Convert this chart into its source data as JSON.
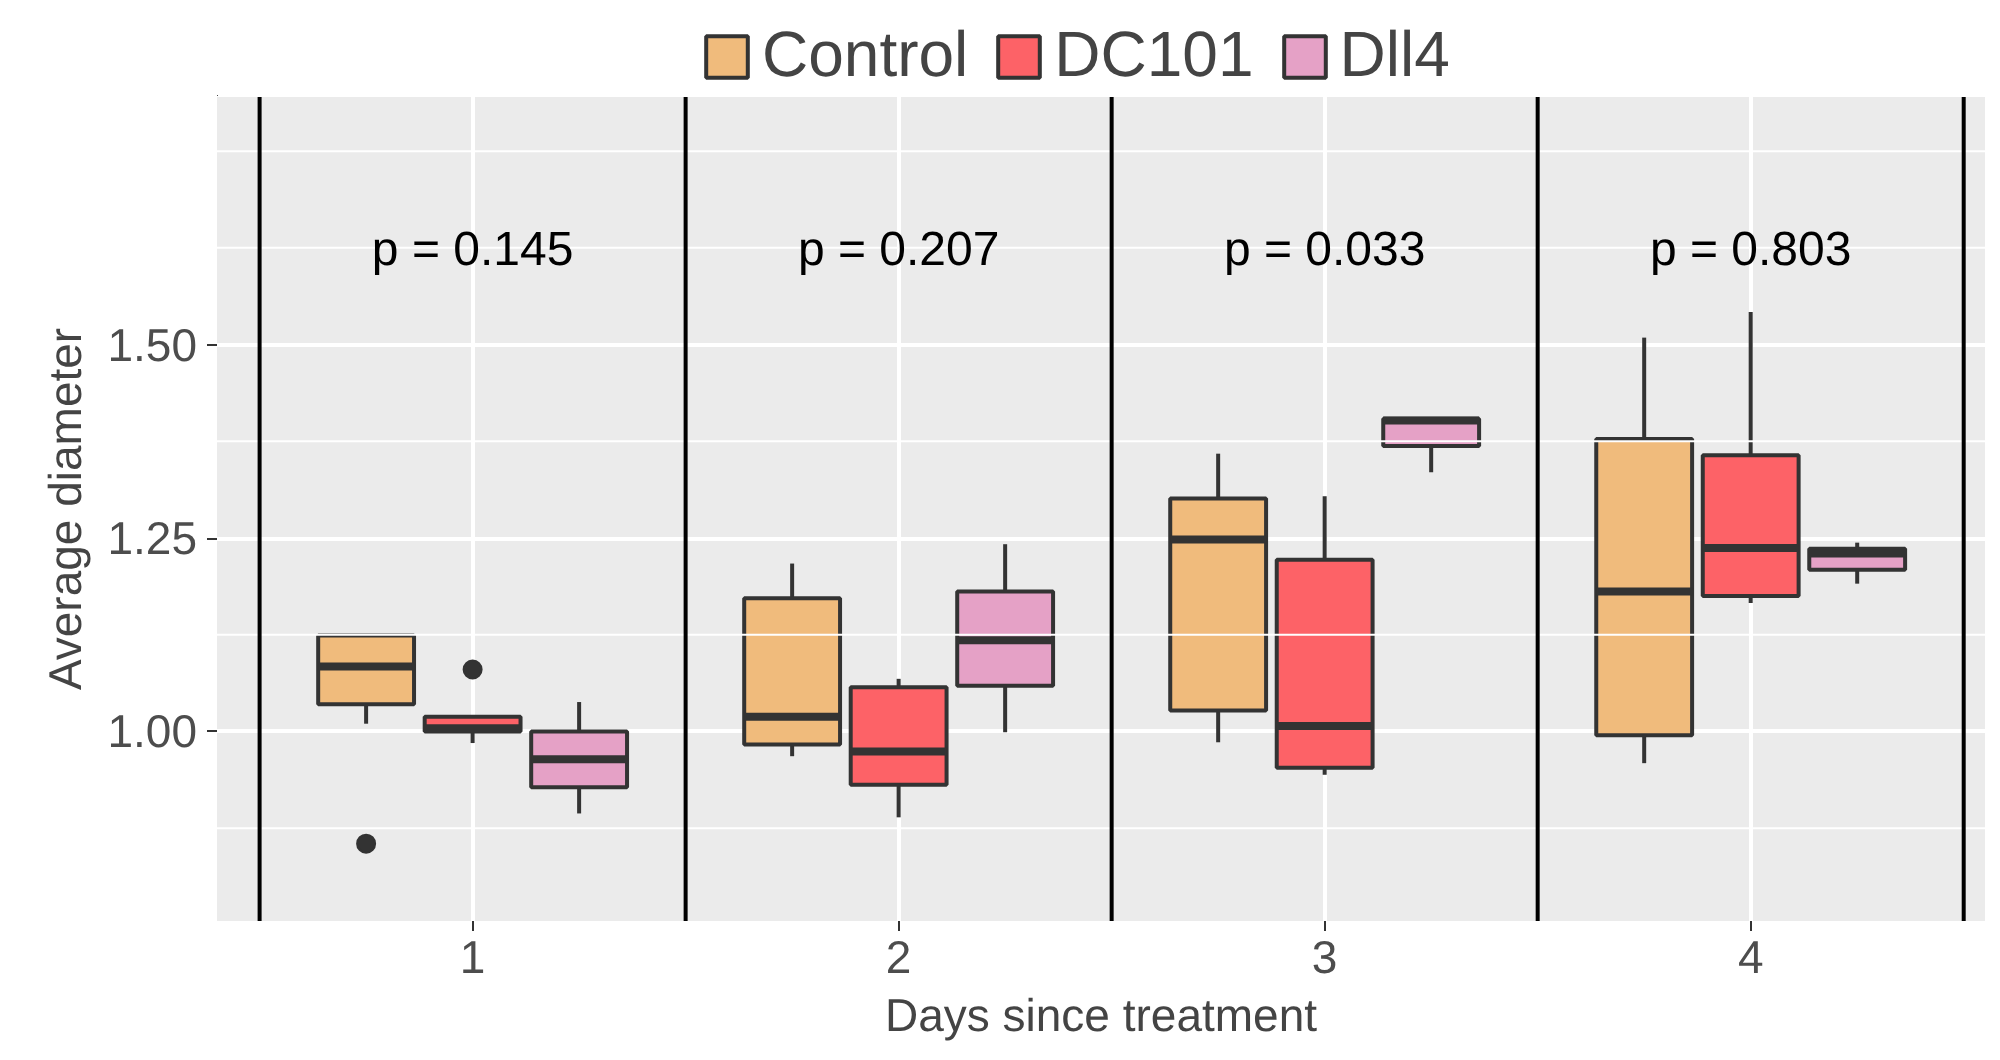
{
  "chart_data": {
    "type": "box",
    "xlabel": "Days since treatment",
    "ylabel": "Average diameter",
    "x": [
      1,
      2,
      3,
      4
    ],
    "xlim": [
      0.4,
      4.55
    ],
    "xticks": [
      1,
      2,
      3,
      4
    ],
    "ylim": [
      0.755,
      1.82
    ],
    "yticks": [
      {
        "value": 0.875,
        "label": null
      },
      {
        "value": 1.0,
        "label": "1.00"
      },
      {
        "value": 1.125,
        "label": null
      },
      {
        "value": 1.25,
        "label": "1.25"
      },
      {
        "value": 1.375,
        "label": null
      },
      {
        "value": 1.5,
        "label": "1.50"
      },
      {
        "value": 1.625,
        "label": null
      },
      {
        "value": 1.75,
        "label": null
      }
    ],
    "grid": true,
    "legend": "top",
    "series": [
      {
        "name": "Control",
        "color": "#f0bb7c",
        "boxes": [
          {
            "low": 1.01,
            "q1": 1.035,
            "median": 1.084,
            "q3": 1.124,
            "high": 1.125,
            "outliers": [
              0.855
            ]
          },
          {
            "low": 0.968,
            "q1": 0.983,
            "median": 1.019,
            "q3": 1.172,
            "high": 1.217
          },
          {
            "low": 0.986,
            "q1": 1.027,
            "median": 1.248,
            "q3": 1.301,
            "high": 1.359
          },
          {
            "low": 0.959,
            "q1": 0.995,
            "median": 1.181,
            "q3": 1.378,
            "high": 1.509
          }
        ]
      },
      {
        "name": "DC101",
        "color": "#fd6267",
        "boxes": [
          {
            "low": 0.985,
            "q1": 1.0,
            "median": 1.004,
            "q3": 1.019,
            "high": 1.02,
            "outliers": [
              1.08
            ]
          },
          {
            "low": 0.889,
            "q1": 0.931,
            "median": 0.974,
            "q3": 1.057,
            "high": 1.068
          },
          {
            "low": 0.944,
            "q1": 0.953,
            "median": 1.007,
            "q3": 1.222,
            "high": 1.304
          },
          {
            "low": 1.166,
            "q1": 1.175,
            "median": 1.237,
            "q3": 1.357,
            "high": 1.542
          }
        ]
      },
      {
        "name": "Dll4",
        "color": "#e5a1c6",
        "boxes": [
          {
            "low": 0.894,
            "q1": 0.928,
            "median": 0.964,
            "q3": 1.0,
            "high": 1.038
          },
          {
            "low": 0.999,
            "q1": 1.059,
            "median": 1.118,
            "q3": 1.181,
            "high": 1.242
          },
          {
            "low": 1.335,
            "q1": 1.369,
            "median": 1.402,
            "q3": 1.404,
            "high": 1.405
          },
          {
            "low": 1.191,
            "q1": 1.209,
            "median": 1.23,
            "q3": 1.236,
            "high": 1.244
          }
        ]
      }
    ],
    "ref_lines": [
      {
        "axis": "x",
        "value": 0.5,
        "label": null,
        "color": "#000000"
      },
      {
        "axis": "x",
        "value": 1.5,
        "label": null,
        "color": "#000000"
      },
      {
        "axis": "x",
        "value": 2.5,
        "label": null,
        "color": "#000000"
      },
      {
        "axis": "x",
        "value": 3.5,
        "label": null,
        "color": "#000000"
      },
      {
        "axis": "x",
        "value": 4.5,
        "label": null,
        "color": "#000000"
      }
    ],
    "annotations": [
      "p = 0.145",
      "p = 0.207",
      "p = 0.033",
      "p = 0.803"
    ]
  }
}
